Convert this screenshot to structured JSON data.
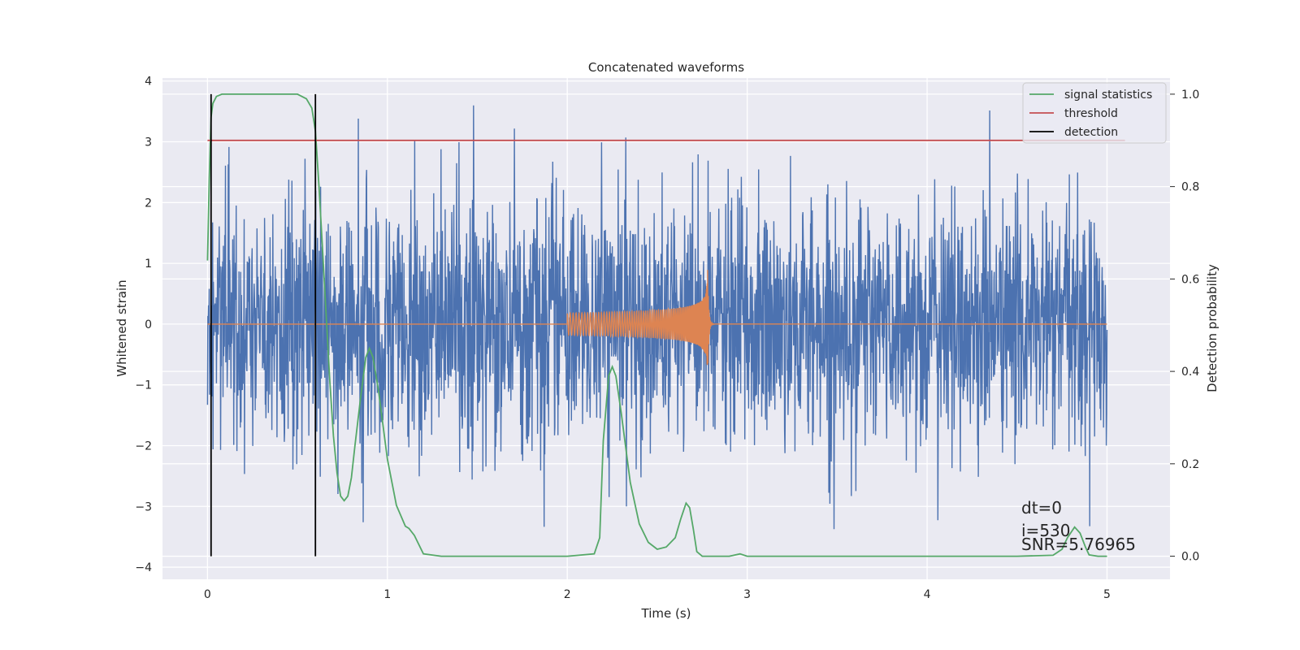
{
  "chart_data": {
    "type": "line",
    "title": "Concatenated waveforms",
    "xlabel": "Time (s)",
    "ylabel": "Whitened strain",
    "ylabel_right": "Detection probability",
    "xlim": [
      -0.25,
      5.35
    ],
    "ylim": [
      -4.2,
      4.05
    ],
    "ylim_right": [
      -0.05,
      1.035
    ],
    "x_ticks": [
      0,
      1,
      2,
      3,
      4,
      5
    ],
    "x_tick_labels": [
      "0",
      "1",
      "2",
      "3",
      "4",
      "5"
    ],
    "y_ticks": [
      -4,
      -3,
      -2,
      -1,
      0,
      1,
      2,
      3,
      4
    ],
    "y_tick_labels": [
      "−4",
      "−3",
      "−2",
      "−1",
      "0",
      "1",
      "2",
      "3",
      "4"
    ],
    "y_right_ticks": [
      0.0,
      0.2,
      0.4,
      0.6,
      0.8,
      1.0
    ],
    "y_right_tick_labels": [
      "0.0",
      "0.2",
      "0.4",
      "0.6",
      "0.8",
      "1.0"
    ],
    "grid": true,
    "legend_position": "top-right",
    "series": [
      {
        "name": "signal statistics",
        "axis": "right",
        "color": "#55a868",
        "x": [
          0.0,
          0.01,
          0.02,
          0.03,
          0.05,
          0.08,
          0.12,
          0.2,
          0.3,
          0.4,
          0.5,
          0.55,
          0.58,
          0.6,
          0.62,
          0.64,
          0.66,
          0.68,
          0.7,
          0.72,
          0.74,
          0.76,
          0.78,
          0.8,
          0.82,
          0.85,
          0.88,
          0.9,
          0.92,
          0.95,
          1.0,
          1.05,
          1.1,
          1.12,
          1.15,
          1.2,
          1.3,
          1.5,
          1.8,
          2.0,
          2.15,
          2.18,
          2.2,
          2.23,
          2.25,
          2.27,
          2.3,
          2.35,
          2.4,
          2.45,
          2.5,
          2.55,
          2.6,
          2.63,
          2.66,
          2.68,
          2.7,
          2.72,
          2.75,
          2.8,
          2.9,
          2.96,
          3.0,
          3.1,
          3.5,
          4.0,
          4.5,
          4.7,
          4.75,
          4.78,
          4.82,
          4.85,
          4.88,
          4.9,
          4.95,
          5.0
        ],
        "values": [
          0.64,
          0.82,
          0.95,
          0.98,
          0.995,
          1.0,
          1.0,
          1.0,
          1.0,
          1.0,
          1.0,
          0.99,
          0.97,
          0.92,
          0.8,
          0.66,
          0.52,
          0.38,
          0.26,
          0.18,
          0.13,
          0.12,
          0.13,
          0.17,
          0.24,
          0.34,
          0.43,
          0.45,
          0.43,
          0.36,
          0.21,
          0.11,
          0.065,
          0.06,
          0.045,
          0.005,
          0.0,
          0.0,
          0.0,
          0.0,
          0.005,
          0.04,
          0.25,
          0.39,
          0.41,
          0.39,
          0.31,
          0.16,
          0.07,
          0.03,
          0.015,
          0.02,
          0.04,
          0.08,
          0.115,
          0.105,
          0.06,
          0.01,
          0.0,
          0.0,
          0.0,
          0.005,
          0.0,
          0.0,
          0.0,
          0.0,
          0.0,
          0.002,
          0.015,
          0.04,
          0.063,
          0.05,
          0.02,
          0.003,
          0.0,
          0.0
        ]
      },
      {
        "name": "threshold",
        "axis": "right",
        "color": "#c44e52",
        "x": [
          0.0,
          5.1
        ],
        "values": [
          0.9,
          0.9
        ]
      },
      {
        "name": "detection",
        "axis": "right",
        "color": "#000000",
        "x": [
          0.02,
          0.02,
          0.6,
          0.6
        ],
        "values": [
          0.0,
          1.0,
          0.0,
          1.0
        ]
      },
      {
        "name": "",
        "axis": "left",
        "color": "#4c72b0",
        "x_range": [
          0.0,
          5.0
        ],
        "typical_amplitude": 1.0,
        "peak_amplitude": 3.6
      },
      {
        "name": "",
        "axis": "left",
        "color": "#dd8452",
        "x_range": [
          2.0,
          2.78
        ],
        "peak_amplitude": 1.1
      }
    ],
    "annotations": [
      "dt=0",
      "i=530",
      "SNR=5.76965"
    ]
  }
}
